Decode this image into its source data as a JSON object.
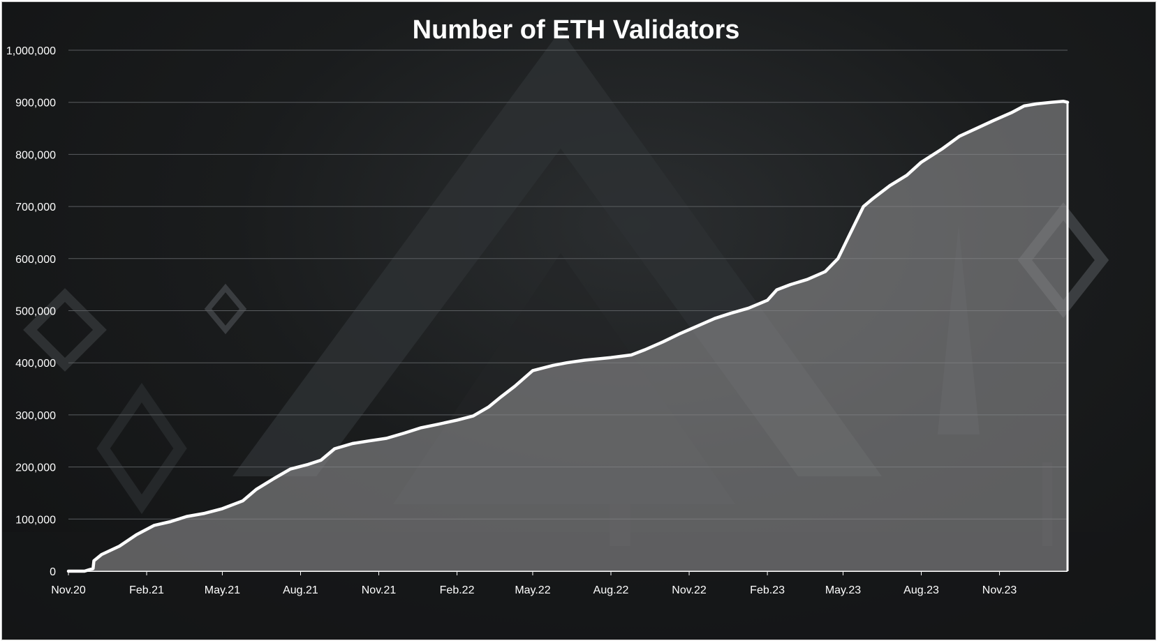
{
  "chart_data": {
    "type": "area",
    "title": "Number of ETH Validators",
    "xlabel": "",
    "ylabel": "",
    "ylim": [
      0,
      1000000
    ],
    "yticks": [
      0,
      100000,
      200000,
      300000,
      400000,
      500000,
      600000,
      700000,
      800000,
      900000,
      1000000
    ],
    "ytick_labels": [
      "0",
      "100,000",
      "200,000",
      "300,000",
      "400,000",
      "500,000",
      "600,000",
      "700,000",
      "800,000",
      "900,000",
      "1,000,000"
    ],
    "xticks": [
      "Nov.20",
      "Feb.21",
      "May.21",
      "Aug.21",
      "Nov.21",
      "Feb.22",
      "May.22",
      "Aug.22",
      "Nov.22",
      "Feb.23",
      "May.23",
      "Aug.23",
      "Nov.23"
    ],
    "xlim": [
      "2020-11-01",
      "2024-01-20"
    ],
    "grid": true,
    "colors": {
      "line": "#ffffff",
      "fill": "#8a8a8c",
      "grid": "#5a5d60",
      "background": "#1a1c1d"
    },
    "series": [
      {
        "x": [
          "2020-11-01",
          "2020-11-20",
          "2020-11-30",
          "2020-12-01",
          "2020-12-10",
          "2020-12-31",
          "2021-01-20",
          "2021-02-10",
          "2021-03-01",
          "2021-03-20",
          "2021-04-10",
          "2021-05-01",
          "2021-05-25",
          "2021-06-10",
          "2021-07-01",
          "2021-07-20",
          "2021-08-10",
          "2021-08-25",
          "2021-09-10",
          "2021-10-01",
          "2021-10-20",
          "2021-11-10",
          "2021-12-01",
          "2021-12-20",
          "2022-01-10",
          "2022-02-01",
          "2022-02-20",
          "2022-03-10",
          "2022-03-25",
          "2022-04-10",
          "2022-05-01",
          "2022-05-25",
          "2022-06-10",
          "2022-07-01",
          "2022-08-01",
          "2022-08-25",
          "2022-09-10",
          "2022-10-01",
          "2022-10-20",
          "2022-11-10",
          "2022-12-01",
          "2022-12-20",
          "2023-01-10",
          "2023-02-01",
          "2023-02-12",
          "2023-02-28",
          "2023-03-20",
          "2023-04-10",
          "2023-04-25",
          "2023-05-10",
          "2023-05-25",
          "2023-06-05",
          "2023-06-25",
          "2023-07-15",
          "2023-08-01",
          "2023-08-25",
          "2023-09-15",
          "2023-10-05",
          "2023-10-25",
          "2023-11-15",
          "2023-11-30",
          "2023-12-15",
          "2024-01-01",
          "2024-01-15",
          "2024-01-20"
        ],
        "values": [
          0,
          0,
          5000,
          20000,
          32000,
          48000,
          70000,
          88000,
          95000,
          105000,
          111000,
          120000,
          135000,
          157000,
          178000,
          196000,
          205000,
          213000,
          235000,
          245000,
          250000,
          255000,
          265000,
          275000,
          282000,
          290000,
          298000,
          315000,
          335000,
          355000,
          385000,
          395000,
          400000,
          405000,
          410000,
          415000,
          425000,
          440000,
          455000,
          470000,
          485000,
          495000,
          505000,
          520000,
          540000,
          550000,
          560000,
          575000,
          600000,
          650000,
          700000,
          715000,
          740000,
          760000,
          785000,
          810000,
          835000,
          850000,
          865000,
          880000,
          893000,
          897000,
          900000,
          902000,
          900000
        ]
      }
    ]
  }
}
